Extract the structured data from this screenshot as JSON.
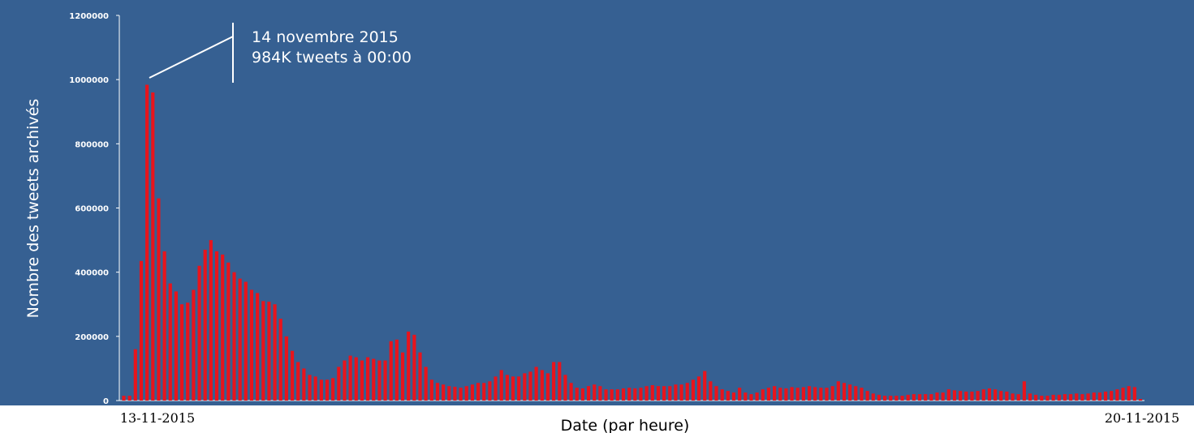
{
  "colors": {
    "background": "#366092",
    "bar": "#e8141c",
    "axis": "#ffffff"
  },
  "chart_data": {
    "type": "bar",
    "title": "",
    "xlabel": "Date (par heure)",
    "ylabel": "Nombre des tweets archivés",
    "ylim": [
      0,
      1200000
    ],
    "yticks": [
      "0",
      "200000",
      "400000",
      "600000",
      "800000",
      "1000000",
      "1200000"
    ],
    "x_start_label": "13-11-2015",
    "x_end_label": "20-11-2015",
    "grid": false,
    "legend": "none",
    "annotation": {
      "line1": "14 novembre 2015",
      "line2": "984K tweets à 00:00"
    },
    "values": [
      15000,
      15000,
      160000,
      435000,
      984000,
      960000,
      630000,
      465000,
      365000,
      340000,
      300000,
      305000,
      345000,
      420000,
      470000,
      500000,
      465000,
      455000,
      430000,
      400000,
      380000,
      370000,
      345000,
      335000,
      310000,
      308000,
      300000,
      255000,
      200000,
      155000,
      120000,
      100000,
      80000,
      75000,
      65000,
      65000,
      70000,
      105000,
      125000,
      140000,
      135000,
      125000,
      135000,
      130000,
      125000,
      125000,
      185000,
      190000,
      150000,
      215000,
      205000,
      150000,
      105000,
      65000,
      55000,
      50000,
      45000,
      43000,
      40000,
      45000,
      50000,
      55000,
      55000,
      60000,
      75000,
      95000,
      80000,
      75000,
      75000,
      85000,
      90000,
      105000,
      95000,
      85000,
      120000,
      120000,
      80000,
      55000,
      40000,
      38000,
      45000,
      50000,
      45000,
      35000,
      35000,
      35000,
      38000,
      40000,
      38000,
      40000,
      45000,
      48000,
      45000,
      45000,
      45000,
      50000,
      50000,
      55000,
      65000,
      75000,
      92000,
      60000,
      45000,
      35000,
      30000,
      25000,
      40000,
      25000,
      20000,
      25000,
      35000,
      40000,
      45000,
      40000,
      38000,
      42000,
      40000,
      42000,
      45000,
      42000,
      40000,
      40000,
      45000,
      60000,
      55000,
      50000,
      45000,
      40000,
      30000,
      22000,
      18000,
      15000,
      15000,
      15000,
      15000,
      18000,
      20000,
      20000,
      20000,
      20000,
      25000,
      25000,
      35000,
      32000,
      30000,
      28000,
      28000,
      30000,
      35000,
      38000,
      35000,
      30000,
      28000,
      22000,
      20000,
      60000,
      22000,
      18000,
      15000,
      15000,
      18000,
      18000,
      20000,
      20000,
      22000,
      20000,
      22000,
      25000,
      25000,
      28000,
      30000,
      35000,
      40000,
      45000,
      42000,
      5000
    ]
  }
}
